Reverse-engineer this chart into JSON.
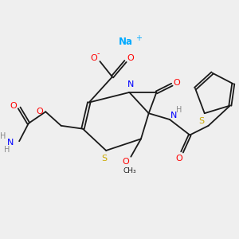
{
  "bg_color": "#efefef",
  "bond_color": "#1a1a1a",
  "atom_colors": {
    "O": "#ff0000",
    "N": "#0000ff",
    "S": "#ccaa00",
    "Na": "#00aaff",
    "H": "#888888",
    "C": "#1a1a1a"
  },
  "title": ""
}
